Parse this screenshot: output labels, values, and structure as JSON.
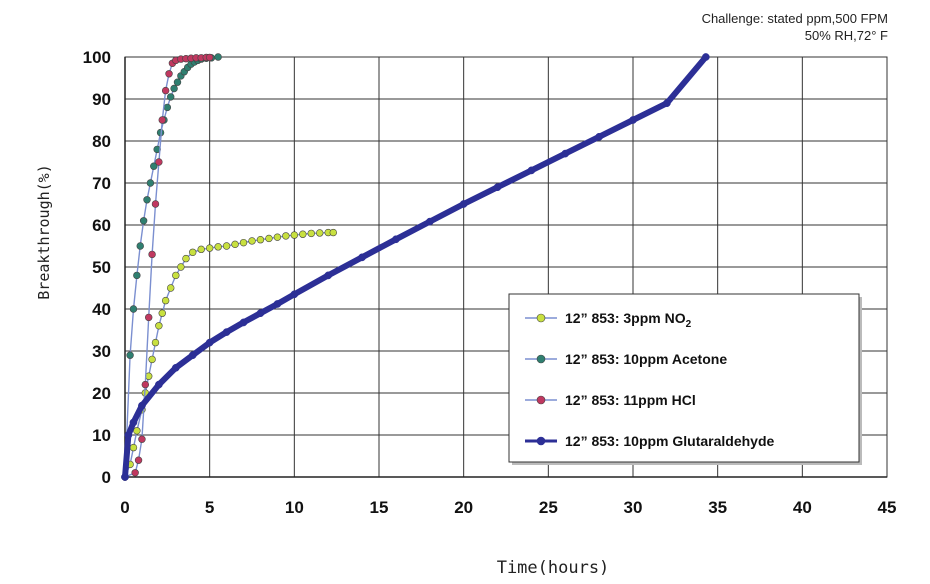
{
  "chart_data": {
    "type": "line",
    "title": "",
    "annotation": [
      "Challenge: stated ppm,500 FPM",
      "50% RH,72° F"
    ],
    "xlabel": "Time(hours)",
    "ylabel": "Breakthrough(%)",
    "xlim": [
      0,
      45
    ],
    "ylim": [
      0,
      100
    ],
    "xticks": [
      0,
      5,
      10,
      15,
      20,
      25,
      30,
      35,
      40,
      45
    ],
    "yticks": [
      0,
      10,
      20,
      30,
      40,
      50,
      60,
      70,
      80,
      90,
      100
    ],
    "grid": true,
    "legend_position": "lower-right",
    "series": [
      {
        "name": "12” 853: 3ppm NO2",
        "label_main": "12” 853: 3ppm NO",
        "label_sub": "2",
        "color": "#c8e040",
        "line_color": "#7b8fd0",
        "points": [
          [
            0,
            0
          ],
          [
            0.3,
            3
          ],
          [
            0.5,
            7
          ],
          [
            0.7,
            11
          ],
          [
            1.0,
            16
          ],
          [
            1.2,
            20
          ],
          [
            1.4,
            24
          ],
          [
            1.6,
            28
          ],
          [
            1.8,
            32
          ],
          [
            2.0,
            36
          ],
          [
            2.2,
            39
          ],
          [
            2.4,
            42
          ],
          [
            2.7,
            45
          ],
          [
            3.0,
            48
          ],
          [
            3.3,
            50
          ],
          [
            3.6,
            52
          ],
          [
            4.0,
            53.5
          ],
          [
            4.5,
            54.2
          ],
          [
            5,
            54.5
          ],
          [
            5.5,
            54.8
          ],
          [
            6,
            55
          ],
          [
            6.5,
            55.4
          ],
          [
            7,
            55.8
          ],
          [
            7.5,
            56.2
          ],
          [
            8,
            56.5
          ],
          [
            8.5,
            56.8
          ],
          [
            9,
            57.1
          ],
          [
            9.5,
            57.4
          ],
          [
            10,
            57.6
          ],
          [
            10.5,
            57.8
          ],
          [
            11,
            58
          ],
          [
            11.5,
            58.1
          ],
          [
            12,
            58.2
          ],
          [
            12.3,
            58.2
          ]
        ]
      },
      {
        "name": "12” 853: 10ppm Acetone",
        "label_main": "12” 853: 10ppm Acetone",
        "label_sub": "",
        "color": "#2f7f70",
        "line_color": "#7b8fd0",
        "points": [
          [
            0,
            0
          ],
          [
            0.3,
            29
          ],
          [
            0.5,
            40
          ],
          [
            0.7,
            48
          ],
          [
            0.9,
            55
          ],
          [
            1.1,
            61
          ],
          [
            1.3,
            66
          ],
          [
            1.5,
            70
          ],
          [
            1.7,
            74
          ],
          [
            1.9,
            78
          ],
          [
            2.1,
            82
          ],
          [
            2.3,
            85
          ],
          [
            2.5,
            88
          ],
          [
            2.7,
            90.5
          ],
          [
            2.9,
            92.5
          ],
          [
            3.1,
            94
          ],
          [
            3.3,
            95.5
          ],
          [
            3.5,
            96.5
          ],
          [
            3.7,
            97.5
          ],
          [
            3.9,
            98.3
          ],
          [
            4.1,
            98.8
          ],
          [
            4.3,
            99.2
          ],
          [
            4.5,
            99.5
          ],
          [
            4.8,
            99.7
          ],
          [
            5.1,
            99.8
          ],
          [
            5.5,
            100
          ]
        ]
      },
      {
        "name": "12” 853: 11ppm HCl",
        "label_main": "12” 853: 11ppm HCl",
        "label_sub": "",
        "color": "#c03860",
        "line_color": "#7b8fd0",
        "points": [
          [
            0,
            0
          ],
          [
            0.6,
            1
          ],
          [
            0.8,
            4
          ],
          [
            1.0,
            9
          ],
          [
            1.2,
            22
          ],
          [
            1.4,
            38
          ],
          [
            1.6,
            53
          ],
          [
            1.8,
            65
          ],
          [
            2.0,
            75
          ],
          [
            2.2,
            85
          ],
          [
            2.4,
            92
          ],
          [
            2.6,
            96
          ],
          [
            2.8,
            98.5
          ],
          [
            3.0,
            99.2
          ],
          [
            3.3,
            99.5
          ],
          [
            3.6,
            99.6
          ],
          [
            3.9,
            99.7
          ],
          [
            4.2,
            99.8
          ],
          [
            4.5,
            99.8
          ],
          [
            4.8,
            99.9
          ],
          [
            5.0,
            99.9
          ]
        ]
      },
      {
        "name": "12” 853: 10ppm Glutaraldehyde",
        "label_main": "12” 853: 10ppm Glutaraldehyde",
        "label_sub": "",
        "color": "#2c2f96",
        "line_color": "#2c2f96",
        "points": [
          [
            0,
            0
          ],
          [
            0.2,
            10
          ],
          [
            0.5,
            13
          ],
          [
            1,
            17
          ],
          [
            2,
            22
          ],
          [
            3,
            26
          ],
          [
            4,
            29
          ],
          [
            5,
            32
          ],
          [
            6,
            34.5
          ],
          [
            7,
            36.8
          ],
          [
            8,
            39
          ],
          [
            9,
            41.2
          ],
          [
            10,
            43.5
          ],
          [
            12,
            48
          ],
          [
            14,
            52.3
          ],
          [
            16,
            56.6
          ],
          [
            18,
            60.8
          ],
          [
            20,
            65
          ],
          [
            22,
            69
          ],
          [
            24,
            73
          ],
          [
            26,
            77
          ],
          [
            28,
            81
          ],
          [
            30,
            85
          ],
          [
            32,
            89
          ],
          [
            34.3,
            100
          ]
        ]
      }
    ]
  }
}
